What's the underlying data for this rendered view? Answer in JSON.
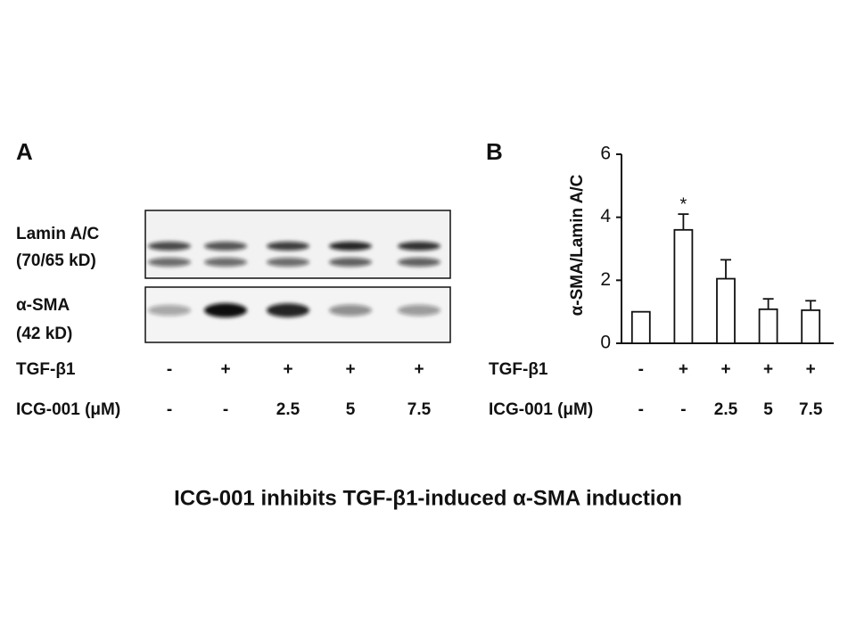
{
  "caption": "ICG-001 inhibits TGF-β1-induced α-SMA induction",
  "panel_a": {
    "label": "A",
    "rows": [
      {
        "label": "Lamin A/C",
        "sublabel": "(70/65 kD)"
      },
      {
        "label": "α-SMA",
        "sublabel": "(42 kD)"
      }
    ],
    "treatment_rows": [
      {
        "name": "TGF-β1",
        "labels": [
          "-",
          "+",
          "+",
          "+",
          "+"
        ]
      },
      {
        "name": "ICG-001 (μM)",
        "labels": [
          "-",
          "-",
          "2.5",
          "5",
          "7.5"
        ]
      }
    ]
  },
  "chart_data": {
    "type": "bar",
    "panel_label": "B",
    "y_label": "α-SMA/Lamin A/C",
    "categories": [
      null,
      null,
      null,
      null,
      null
    ],
    "values": [
      1.0,
      3.6,
      2.05,
      1.08,
      1.05
    ],
    "errors": [
      null,
      0.5,
      0.6,
      0.33,
      0.3
    ],
    "value_annotations": [
      null,
      "*",
      null,
      null,
      null
    ],
    "color": "#ffffff",
    "ylim": [
      0,
      6
    ],
    "yticks": [
      0,
      2,
      4,
      6
    ],
    "treatment_rows": [
      {
        "name": "TGF-β1",
        "labels": [
          "-",
          "+",
          "+",
          "+",
          "+"
        ]
      },
      {
        "name": "ICG-001 (μM)",
        "labels": [
          "-",
          "-",
          "2.5",
          "5",
          "7.5"
        ]
      }
    ]
  }
}
